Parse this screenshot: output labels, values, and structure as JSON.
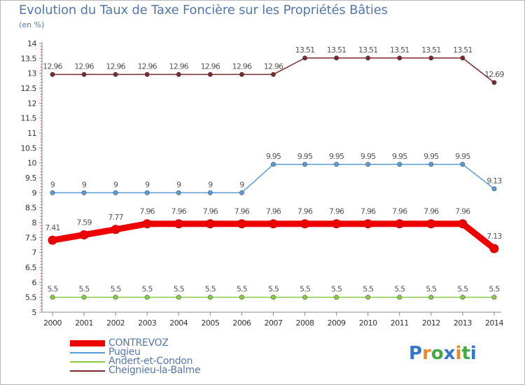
{
  "chart_data": {
    "type": "line",
    "title": "Evolution du Taux de Taxe Foncière sur les Propriétés Bâties",
    "ylabel": "(en %)",
    "xlabel": "",
    "categories": [
      "2000",
      "2001",
      "2002",
      "2003",
      "2004",
      "2005",
      "2006",
      "2007",
      "2008",
      "2009",
      "2010",
      "2011",
      "2012",
      "2013",
      "2014"
    ],
    "yticks": [
      "5",
      "5.5",
      "6",
      "6.5",
      "7",
      "7.5",
      "8",
      "8.5",
      "9",
      "9.5",
      "10",
      "10.5",
      "11",
      "11.5",
      "12",
      "12.5",
      "13",
      "13.5",
      "14"
    ],
    "ylim": [
      5,
      14
    ],
    "grid": false,
    "legend_position": "bottom-left",
    "series": [
      {
        "name": "CONTREVOZ",
        "color": "#ee0000",
        "values": [
          7.41,
          7.59,
          7.77,
          7.96,
          7.96,
          7.96,
          7.96,
          7.96,
          7.96,
          7.96,
          7.96,
          7.96,
          7.96,
          7.96,
          7.13
        ],
        "labels": [
          "7.41",
          "7.59",
          "7.77",
          "7.96",
          "7.96",
          "7.96",
          "7.96",
          "7.96",
          "7.96",
          "7.96",
          "7.96",
          "7.96",
          "7.96",
          "7.96",
          "7.13"
        ]
      },
      {
        "name": "Pugieu",
        "color": "#5b9bd5",
        "values": [
          9,
          9,
          9,
          9,
          9,
          9,
          9,
          9.95,
          9.95,
          9.95,
          9.95,
          9.95,
          9.95,
          9.95,
          9.13
        ],
        "labels": [
          "9",
          "9",
          "9",
          "9",
          "9",
          "9",
          "9",
          "9.95",
          "9.95",
          "9.95",
          "9.95",
          "9.95",
          "9.95",
          "9.95",
          "9.13"
        ]
      },
      {
        "name": "Andert-et-Condon",
        "color": "#88cc44",
        "values": [
          5.5,
          5.5,
          5.5,
          5.5,
          5.5,
          5.5,
          5.5,
          5.5,
          5.5,
          5.5,
          5.5,
          5.5,
          5.5,
          5.5,
          5.5
        ],
        "labels": [
          "5.5",
          "5.5",
          "5.5",
          "5.5",
          "5.5",
          "5.5",
          "5.5",
          "5.5",
          "5.5",
          "5.5",
          "5.5",
          "5.5",
          "5.5",
          "5.5",
          "5.5"
        ]
      },
      {
        "name": "Cheignieu-la-Balme",
        "color": "#7a2a2a",
        "values": [
          12.96,
          12.96,
          12.96,
          12.96,
          12.96,
          12.96,
          12.96,
          12.96,
          13.51,
          13.51,
          13.51,
          13.51,
          13.51,
          13.51,
          12.69
        ],
        "labels": [
          "12.96",
          "12.96",
          "12.96",
          "12.96",
          "12.96",
          "12.96",
          "12.96",
          "12.96",
          "13.51",
          "13.51",
          "13.51",
          "13.51",
          "13.51",
          "13.51",
          "12.69"
        ]
      }
    ]
  },
  "brand": {
    "letters": [
      "P",
      "r",
      "o",
      "x",
      "i",
      "t",
      "i"
    ],
    "colors": [
      "#3377cc",
      "#ee8822",
      "#44aa44",
      "#3377cc",
      "#ee8822",
      "#44aa44",
      "#3377cc"
    ]
  }
}
